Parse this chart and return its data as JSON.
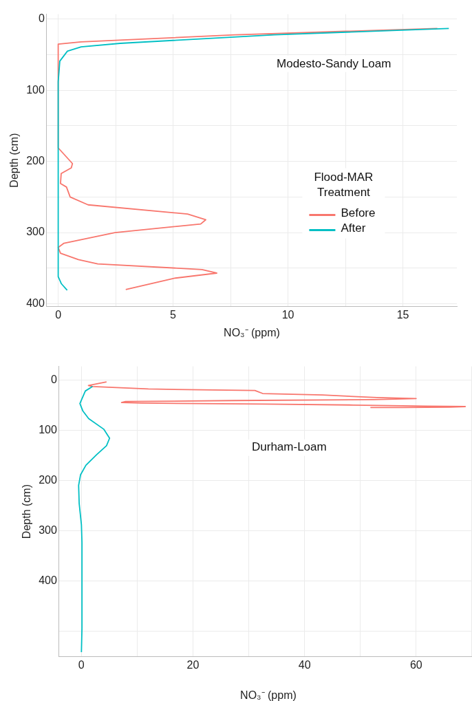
{
  "chart_data": [
    {
      "type": "line",
      "xlabel": "NO₃⁻ (ppm)",
      "ylabel": "Depth (cm)",
      "legend_title": "Flood-MAR Treatment",
      "legend": "right",
      "grid": true,
      "annotations": [
        "Modesto-Sandy Loam"
      ],
      "xlim": [
        -0.5,
        17.35
      ],
      "xticks": [
        0,
        {
          "value": 2.5,
          "label": null
        },
        5,
        {
          "value": 7.5,
          "label": null
        },
        10,
        {
          "value": 12.5,
          "label": null
        },
        15
      ],
      "ylim": [
        404,
        -7
      ],
      "yticks": [
        0,
        {
          "value": 50,
          "label": null
        },
        100,
        {
          "value": 150,
          "label": null
        },
        200,
        {
          "value": 250,
          "label": null
        },
        300,
        {
          "value": 350,
          "label": null
        },
        400
      ],
      "series": [
        {
          "name": "Before",
          "color": "#f8766d",
          "x": [
            16.5,
            7.7,
            1.0,
            0,
            0,
            0.62,
            0.57,
            0.13,
            0.1,
            0.36,
            0.52,
            1.3,
            5.63,
            6.42,
            6.2,
            2.47,
            0.25,
            0,
            0.1,
            0.88,
            1.72,
            6.26,
            6.9,
            5.1,
            2.94
          ],
          "values": [
            13,
            22,
            32,
            35,
            181,
            203,
            209,
            217,
            231,
            236,
            250,
            261,
            274,
            282,
            288,
            300,
            315,
            321,
            329,
            338,
            344,
            352,
            357,
            364,
            380
          ]
        },
        {
          "name": "After",
          "color": "#00bfc4",
          "x": [
            17.0,
            9.4,
            2.7,
            1.0,
            0.4,
            0.07,
            0,
            0,
            0.14,
            0.39
          ],
          "values": [
            13,
            22,
            34,
            39,
            45,
            59,
            88,
            362,
            372,
            381
          ]
        }
      ]
    },
    {
      "type": "line",
      "xlabel": "NO₃⁻ (ppm)",
      "ylabel": "Depth (cm)",
      "grid": true,
      "annotations": [
        "Durham-Loam"
      ],
      "xlim": [
        -4,
        71
      ],
      "xticks": [
        0,
        {
          "value": 10,
          "label": null
        },
        20,
        {
          "value": 30,
          "label": null
        },
        40,
        {
          "value": 50,
          "label": null
        },
        60,
        {
          "value": 70,
          "label": null
        }
      ],
      "ylim": [
        551,
        -27
      ],
      "yticks": [
        0,
        100,
        200,
        300,
        400,
        {
          "value": 500,
          "label": null
        }
      ],
      "series": [
        {
          "color": "#f8766d",
          "x": [
            4.5,
            1.26,
            2.0,
            12.0,
            23.7,
            31.1,
            32.5,
            43.2,
            53,
            60,
            52.5,
            27.4,
            7.9,
            7.2,
            10.7,
            33,
            48.8,
            61.8,
            68.8,
            66,
            57.6,
            51.8
          ],
          "values": [
            4,
            11,
            13,
            18,
            20,
            21,
            27,
            30,
            35,
            37,
            39,
            41,
            43,
            45,
            46,
            48,
            50,
            52,
            53,
            54,
            55,
            55
          ]
        },
        {
          "color": "#00bfc4",
          "x": [
            2.0,
            0.7,
            -0.27,
            0.27,
            1.3,
            4.0,
            5.05,
            4.5,
            2.7,
            0.8,
            -0.16,
            -0.5,
            -0.4,
            0,
            0.1,
            0.1,
            0
          ],
          "values": [
            13,
            22,
            47,
            62,
            77,
            98,
            116,
            131,
            149,
            170,
            189,
            210,
            246,
            288,
            324,
            494,
            542
          ]
        }
      ]
    }
  ]
}
